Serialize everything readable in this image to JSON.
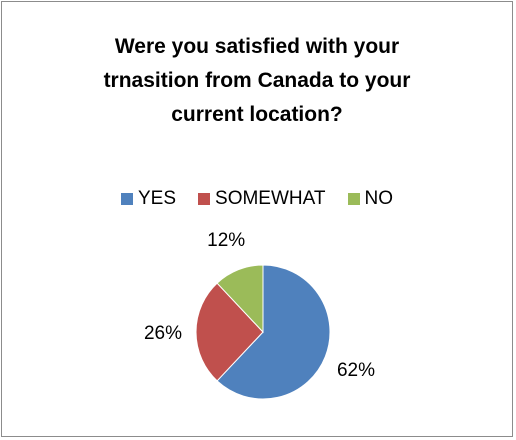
{
  "chart_data": {
    "type": "pie",
    "title_lines": [
      "Were you satisfied with your",
      "trnasition from Canada to your",
      "current location?"
    ],
    "categories": [
      "YES",
      "SOMEWHAT",
      "NO"
    ],
    "values": [
      62,
      26,
      12
    ],
    "data_labels": [
      "62%",
      "26%",
      "12%"
    ],
    "colors": [
      "#4f81bd",
      "#c0504d",
      "#9bbb59"
    ],
    "legend_position": "top",
    "start_angle": "12 o'clock, clockwise"
  }
}
